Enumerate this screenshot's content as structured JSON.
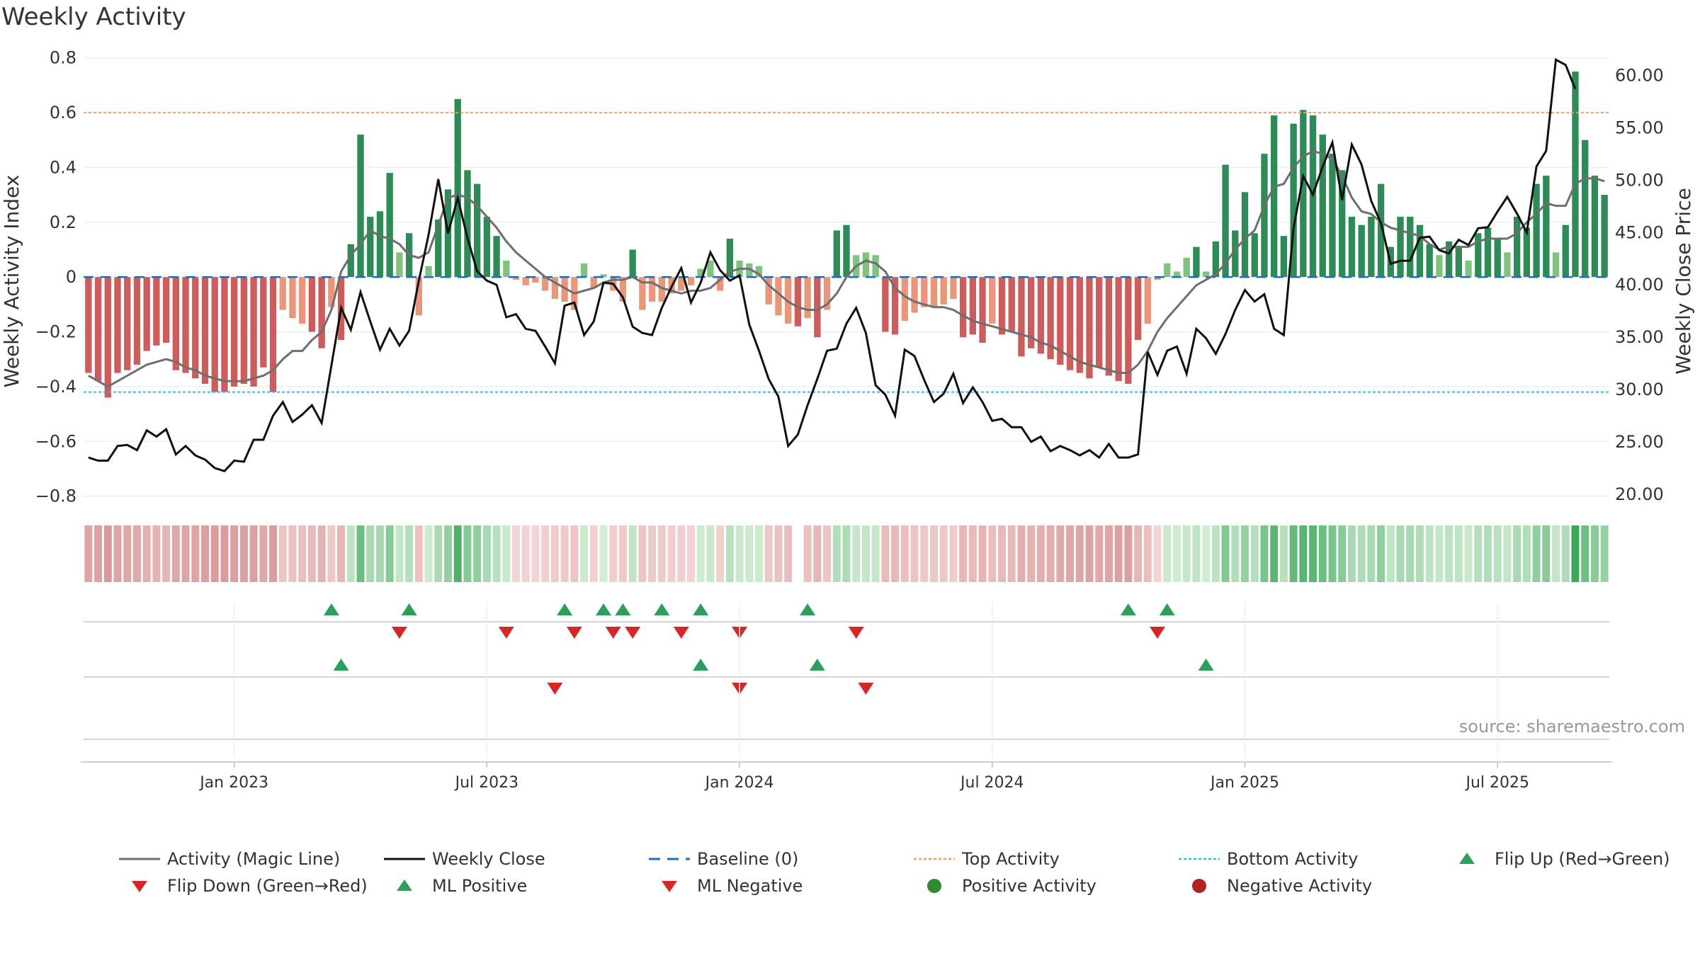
{
  "title": "Weekly Activity",
  "source": "source: sharemaestro.com",
  "colors": {
    "magic_line": "#6e6e6e",
    "close_line": "#111111",
    "baseline": "#1f6fb4",
    "top_line": "#f0a15c",
    "bottom_line": "#26c6da",
    "pos_strong": "#2e8b57",
    "pos_light": "#82c17f",
    "neg_strong": "#cd5c5c",
    "neg_light": "#e9967a",
    "up_marker": "#2ca05a",
    "down_marker": "#d62728",
    "pos_dot": "#2e8b2e",
    "neg_dot": "#b22222"
  },
  "chart_data": {
    "type": "bar+line",
    "title": "Weekly Activity",
    "ylabel_left": "Weekly Activity Index",
    "ylabel_right": "Weekly Close Price",
    "ylim_left": [
      -0.85,
      0.82
    ],
    "yticks_left": [
      0.8,
      0.6,
      0.4,
      0.2,
      0,
      -0.2,
      -0.4,
      -0.6,
      -0.8
    ],
    "ytick_labels_left": [
      "0.8",
      "0.6",
      "0.4",
      "0.2",
      "0",
      "−0.2",
      "−0.4",
      "−0.6",
      "−0.8"
    ],
    "ylim_right": [
      18.5,
      62.2
    ],
    "yticks_right": [
      60,
      55,
      50,
      45,
      40,
      35,
      30,
      25,
      20
    ],
    "ytick_labels_right": [
      "60.00",
      "55.00",
      "50.00",
      "45.00",
      "40.00",
      "35.00",
      "30.00",
      "25.00",
      "20.00"
    ],
    "top_activity": 0.6,
    "bottom_activity": -0.42,
    "x_tick_labels": [
      "Jan 2023",
      "Jul 2023",
      "Jan 2024",
      "Jul 2024",
      "Jan 2025",
      "Jul 2025"
    ],
    "x_tick_weeks": [
      15,
      41,
      67,
      93,
      119,
      145
    ],
    "n_weeks": 157,
    "activity": [
      -0.35,
      -0.38,
      -0.44,
      -0.35,
      -0.34,
      -0.32,
      -0.27,
      -0.25,
      -0.24,
      -0.34,
      -0.35,
      -0.37,
      -0.39,
      -0.42,
      -0.42,
      -0.4,
      -0.39,
      -0.4,
      -0.33,
      -0.42,
      -0.12,
      -0.15,
      -0.17,
      -0.2,
      -0.26,
      -0.11,
      -0.23,
      0.12,
      0.52,
      0.22,
      0.24,
      0.38,
      0.09,
      0.16,
      -0.14,
      0.04,
      0.21,
      0.32,
      0.65,
      0.39,
      0.34,
      0.22,
      0.15,
      0.06,
      -0.01,
      -0.03,
      -0.02,
      -0.05,
      -0.08,
      -0.09,
      -0.12,
      0.05,
      -0.04,
      0.01,
      -0.05,
      -0.09,
      0.1,
      -0.12,
      -0.09,
      -0.09,
      -0.06,
      -0.05,
      -0.03,
      0.03,
      0.06,
      -0.05,
      0.14,
      0.06,
      0.05,
      0.04,
      -0.1,
      -0.14,
      -0.17,
      -0.18,
      -0.15,
      -0.22,
      -0.12,
      0.17,
      0.19,
      0.08,
      0.09,
      0.08,
      -0.2,
      -0.21,
      -0.16,
      -0.13,
      -0.11,
      -0.11,
      -0.1,
      -0.08,
      -0.22,
      -0.21,
      -0.24,
      -0.17,
      -0.21,
      -0.2,
      -0.29,
      -0.26,
      -0.28,
      -0.3,
      -0.32,
      -0.34,
      -0.35,
      -0.37,
      -0.33,
      -0.36,
      -0.38,
      -0.39,
      -0.23,
      -0.17,
      -0.01,
      0.05,
      0.02,
      0.07,
      0.11,
      0.02,
      0.13,
      0.41,
      0.17,
      0.31,
      0.16,
      0.45,
      0.59,
      0.15,
      0.56,
      0.61,
      0.59,
      0.52,
      0.45,
      0.39,
      0.22,
      0.19,
      0.22,
      0.34,
      0.11,
      0.22,
      0.22,
      0.19,
      0.12,
      0.08,
      0.13,
      0.11,
      0.06,
      0.16,
      0.18,
      0.14,
      0.09,
      0.22,
      0.18,
      0.34,
      0.37,
      0.09,
      0.19,
      0.75,
      0.5,
      0.37,
      0.3
    ],
    "magic_line": [
      -0.36,
      -0.38,
      -0.4,
      -0.38,
      -0.36,
      -0.34,
      -0.32,
      -0.31,
      -0.3,
      -0.31,
      -0.33,
      -0.34,
      -0.36,
      -0.37,
      -0.38,
      -0.38,
      -0.38,
      -0.37,
      -0.36,
      -0.34,
      -0.3,
      -0.27,
      -0.27,
      -0.23,
      -0.2,
      -0.12,
      0.02,
      0.08,
      0.12,
      0.17,
      0.15,
      0.14,
      0.12,
      0.08,
      0.07,
      0.09,
      0.19,
      0.29,
      0.3,
      0.29,
      0.26,
      0.22,
      0.18,
      0.13,
      0.09,
      0.06,
      0.03,
      0.0,
      -0.02,
      -0.04,
      -0.06,
      -0.05,
      -0.04,
      -0.02,
      -0.01,
      -0.01,
      0.0,
      -0.02,
      -0.02,
      -0.04,
      -0.05,
      -0.06,
      -0.05,
      -0.05,
      -0.04,
      -0.01,
      0.02,
      0.03,
      0.03,
      0.01,
      -0.03,
      -0.06,
      -0.09,
      -0.11,
      -0.12,
      -0.12,
      -0.1,
      -0.06,
      0.0,
      0.04,
      0.06,
      0.05,
      0.02,
      -0.04,
      -0.07,
      -0.09,
      -0.1,
      -0.11,
      -0.11,
      -0.12,
      -0.14,
      -0.16,
      -0.17,
      -0.18,
      -0.19,
      -0.2,
      -0.21,
      -0.22,
      -0.24,
      -0.25,
      -0.27,
      -0.29,
      -0.31,
      -0.32,
      -0.33,
      -0.34,
      -0.35,
      -0.35,
      -0.32,
      -0.27,
      -0.2,
      -0.15,
      -0.11,
      -0.07,
      -0.03,
      -0.01,
      0.01,
      0.05,
      0.1,
      0.14,
      0.17,
      0.26,
      0.33,
      0.34,
      0.4,
      0.44,
      0.46,
      0.45,
      0.43,
      0.37,
      0.29,
      0.24,
      0.23,
      0.2,
      0.18,
      0.17,
      0.16,
      0.15,
      0.12,
      0.1,
      0.11,
      0.11,
      0.11,
      0.13,
      0.14,
      0.14,
      0.14,
      0.16,
      0.2,
      0.23,
      0.27,
      0.26,
      0.26,
      0.34,
      0.36,
      0.36,
      0.35
    ],
    "weekly_close": [
      23.5,
      23.2,
      23.2,
      24.6,
      24.7,
      24.2,
      26.1,
      25.5,
      26.2,
      23.8,
      24.6,
      23.7,
      23.3,
      22.5,
      22.2,
      23.2,
      23.1,
      25.2,
      25.2,
      27.5,
      28.8,
      26.9,
      27.6,
      28.5,
      26.8,
      32.3,
      37.8,
      35.7,
      39.3,
      36.5,
      33.8,
      35.8,
      34.2,
      35.6,
      40.4,
      44.8,
      50.1,
      44.9,
      48.3,
      44.5,
      41.3,
      40.4,
      40.0,
      36.9,
      37.2,
      35.8,
      35.6,
      34.1,
      32.5,
      38.0,
      38.3,
      35.2,
      36.5,
      40.2,
      40.1,
      38.8,
      36.0,
      35.4,
      35.2,
      37.8,
      39.8,
      41.6,
      38.3,
      40.2,
      43.1,
      41.4,
      40.4,
      40.9,
      36.2,
      33.7,
      31.0,
      29.3,
      24.6,
      25.7,
      28.5,
      31.0,
      33.7,
      33.9,
      36.3,
      37.8,
      35.4,
      30.4,
      29.5,
      27.5,
      33.8,
      33.2,
      30.9,
      28.8,
      29.6,
      31.5,
      28.7,
      30.2,
      28.8,
      27.0,
      27.2,
      26.4,
      26.4,
      25.0,
      25.5,
      24.1,
      24.6,
      24.2,
      23.7,
      24.2,
      23.5,
      24.8,
      23.5,
      23.5,
      23.8,
      33.6,
      31.4,
      33.7,
      34.1,
      31.5,
      35.8,
      34.9,
      33.4,
      35.3,
      37.6,
      39.5,
      38.4,
      39.1,
      35.8,
      35.2,
      45.4,
      50.4,
      48.6,
      51.3,
      53.6,
      48.1,
      53.4,
      51.5,
      48.0,
      45.9,
      42.0,
      42.3,
      42.3,
      44.5,
      44.6,
      43.3,
      43.0,
      44.3,
      43.8,
      45.4,
      45.5,
      47.0,
      48.4,
      46.8,
      45.0,
      51.3,
      52.8,
      61.5,
      61.0,
      58.7
    ]
  },
  "strips": {
    "flip_row": {
      "up_weeks": [
        25,
        33,
        49,
        53,
        55,
        59,
        63,
        74,
        107,
        111
      ],
      "down_weeks": [
        32,
        43,
        50,
        54,
        56,
        61,
        67,
        79,
        110
      ]
    },
    "ml_row": {
      "up_weeks": [
        26,
        63,
        75,
        115
      ],
      "down_weeks": [
        48,
        67,
        80
      ]
    }
  },
  "legend": [
    {
      "key": "magic",
      "label": "Activity (Magic Line)"
    },
    {
      "key": "close",
      "label": "Weekly Close"
    },
    {
      "key": "baseline",
      "label": "Baseline (0)"
    },
    {
      "key": "top",
      "label": "Top Activity"
    },
    {
      "key": "bottom",
      "label": "Bottom Activity"
    },
    {
      "key": "flipup",
      "label": "Flip Up (Red→Green)"
    },
    {
      "key": "flipdown",
      "label": "Flip Down (Green→Red)"
    },
    {
      "key": "mlpos",
      "label": "ML Positive"
    },
    {
      "key": "mlneg",
      "label": "ML Negative"
    },
    {
      "key": "posact",
      "label": "Positive Activity"
    },
    {
      "key": "negact",
      "label": "Negative Activity"
    }
  ]
}
